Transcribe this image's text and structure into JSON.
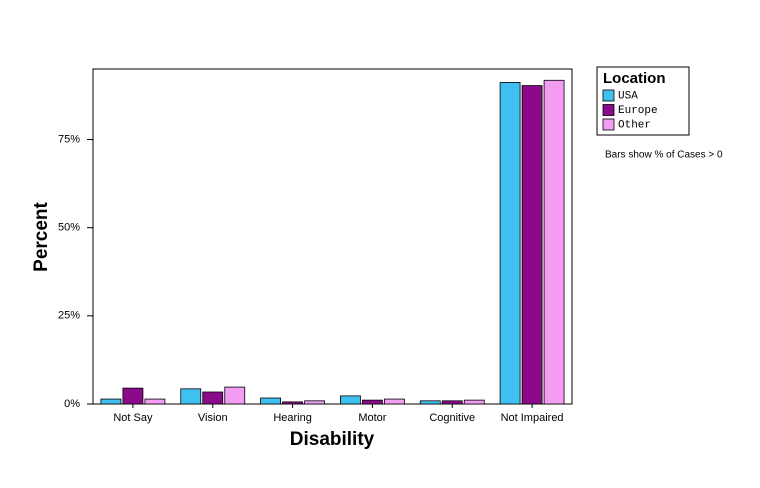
{
  "chart_data": {
    "type": "bar",
    "x_label": "Disability",
    "y_label": "Percent",
    "legend_title": "Location",
    "note": "Bars show % of Cases > 0",
    "categories": [
      "Not Say",
      "Vision",
      "Hearing",
      "Motor",
      "Cognitive",
      "Not Impaired"
    ],
    "series": [
      {
        "name": "USA",
        "color": "#40c0f0",
        "values": [
          1.4,
          4.3,
          1.7,
          2.3,
          0.9,
          91.2
        ]
      },
      {
        "name": "Europe",
        "color": "#8b0a8b",
        "values": [
          4.5,
          3.4,
          0.6,
          1.1,
          0.9,
          90.3
        ]
      },
      {
        "name": "Other",
        "color": "#f29cf2",
        "values": [
          1.4,
          4.8,
          0.9,
          1.4,
          1.1,
          91.8
        ]
      }
    ],
    "ylim": [
      0,
      95
    ],
    "yticks": [
      {
        "value": 0,
        "label": "0%"
      },
      {
        "value": 25,
        "label": "25%"
      },
      {
        "value": 50,
        "label": "50%"
      },
      {
        "value": 75,
        "label": "75%"
      }
    ],
    "grid": false,
    "legend": "right"
  }
}
